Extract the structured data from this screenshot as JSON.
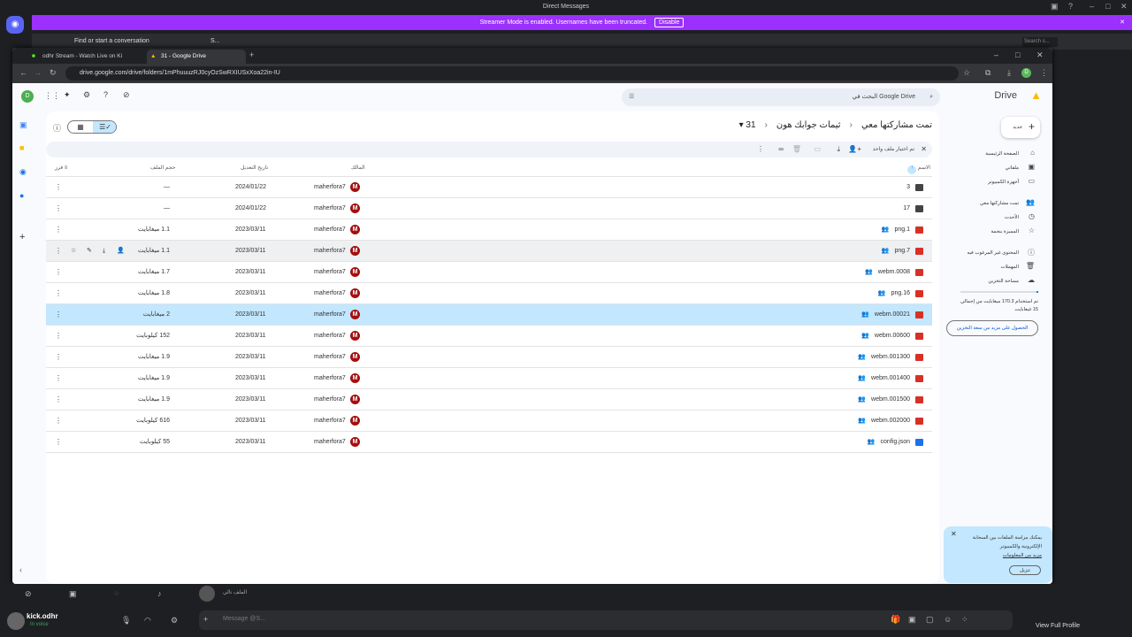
{
  "discord": {
    "window_title": "Direct Messages",
    "banner_text": "Streamer Mode is enabled. Usernames have been truncated.",
    "banner_button": "Disable",
    "find_conversation": "Find or start a conversation",
    "dm_name": "S...",
    "search_placeholder": "Search s...",
    "username": "kick.odhr",
    "status": "In voice",
    "message_placeholder": "Message @S...",
    "chat_snippet": "الملف تالي",
    "view_full_profile": "View Full Profile",
    "banner_color": "#9b30ff"
  },
  "browser": {
    "tabs": [
      {
        "label": "odhr Stream - Watch Live on Ki"
      },
      {
        "label": "31 - Google Drive",
        "active": true
      }
    ],
    "url": "drive.google.com/drive/folders/1mPhuuuzRJ0cyOzSwRXIUSxXoa22in-IU",
    "profile_initial": "D"
  },
  "drive": {
    "logo_text": "Drive",
    "search_placeholder": "البحث في Google Drive",
    "new_button": "جديد",
    "breadcrumb": [
      "تمت مشاركتها معي",
      "ثيمات جوابك هون",
      "31"
    ],
    "selection_text": "تم اختيار ملف واحد",
    "columns": {
      "name": "الاسم",
      "owner": "المالك",
      "modified": "تاريخ التعديل",
      "size": "حجم الملف",
      "sort": "فرز"
    },
    "nav": [
      {
        "label": "الصفحة الرئيسية",
        "icon": "home-icon",
        "glyph": "⌂"
      },
      {
        "label": "ملفاتي",
        "icon": "my-drive-icon",
        "glyph": "▣"
      },
      {
        "label": "أجهزة الكمبيوتر",
        "icon": "computers-icon",
        "glyph": "▭"
      },
      {
        "label": "تمت مشاركتها معي",
        "icon": "shared-icon",
        "glyph": "👥"
      },
      {
        "label": "الأحدث",
        "icon": "recent-icon",
        "glyph": "◷"
      },
      {
        "label": "المميزة بنجمة",
        "icon": "star-icon",
        "glyph": "☆"
      },
      {
        "label": "المحتوى غير المرغوب فيه",
        "icon": "spam-icon",
        "glyph": "ⓘ"
      },
      {
        "label": "المهملات",
        "icon": "trash-icon",
        "glyph": "🗑"
      },
      {
        "label": "مساحة التخزين",
        "icon": "cloud-icon",
        "glyph": "☁"
      }
    ],
    "storage_text": "تم استخدام 170.3 ميغابايت من إجمالي 15 غيغابايت",
    "storage_used_fraction": 0.011,
    "storage_button": "الحصول على مزيد من سعة التخزين",
    "notice": {
      "text": "يمكنك مزامنة الملفات بين السحابة الإلكترونية والكمبيوتر",
      "link": "مزيد من المعلومات",
      "button": "تنزيل"
    },
    "rows": [
      {
        "name": "3",
        "type": "shared-folder",
        "shared": false,
        "owner": "maherfora7",
        "modified": "2024/01/22",
        "size": "—"
      },
      {
        "name": "17",
        "type": "shared-folder",
        "shared": false,
        "owner": "maherfora7",
        "modified": "2024/01/22",
        "size": "—"
      },
      {
        "name": "png.1",
        "type": "image",
        "shared": true,
        "owner": "maherfora7",
        "modified": "2023/03/11",
        "size": "1.1 ميغابايت"
      },
      {
        "name": "png.7",
        "type": "image",
        "shared": true,
        "owner": "maherfora7",
        "modified": "2023/03/11",
        "size": "1.1 ميغابايت",
        "state": "hover"
      },
      {
        "name": "webm.0008",
        "type": "video",
        "shared": true,
        "owner": "maherfora7",
        "modified": "2023/03/11",
        "size": "1.7 ميغابايت"
      },
      {
        "name": "png.16",
        "type": "image",
        "shared": true,
        "owner": "maherfora7",
        "modified": "2023/03/11",
        "size": "1.8 ميغابايت"
      },
      {
        "name": "webm.00021",
        "type": "video",
        "shared": true,
        "owner": "maherfora7",
        "modified": "2023/03/11",
        "size": "2 ميغابايت",
        "state": "selected"
      },
      {
        "name": "webm.00600",
        "type": "video",
        "shared": true,
        "owner": "maherfora7",
        "modified": "2023/03/11",
        "size": "152 كيلوبايت"
      },
      {
        "name": "webm.001300",
        "type": "video",
        "shared": true,
        "owner": "maherfora7",
        "modified": "2023/03/11",
        "size": "1.9 ميغابايت"
      },
      {
        "name": "webm.001400",
        "type": "video",
        "shared": true,
        "owner": "maherfora7",
        "modified": "2023/03/11",
        "size": "1.9 ميغابايت"
      },
      {
        "name": "webm.001500",
        "type": "video",
        "shared": true,
        "owner": "maherfora7",
        "modified": "2023/03/11",
        "size": "1.9 ميغابايت"
      },
      {
        "name": "webm.002000",
        "type": "video",
        "shared": true,
        "owner": "maherfora7",
        "modified": "2023/03/11",
        "size": "616 كيلوبايت"
      },
      {
        "name": "config.json",
        "type": "doc",
        "shared": true,
        "owner": "maherfora7",
        "modified": "2023/03/11",
        "size": "55 كيلوبايت"
      }
    ],
    "owner_initial": "M"
  }
}
